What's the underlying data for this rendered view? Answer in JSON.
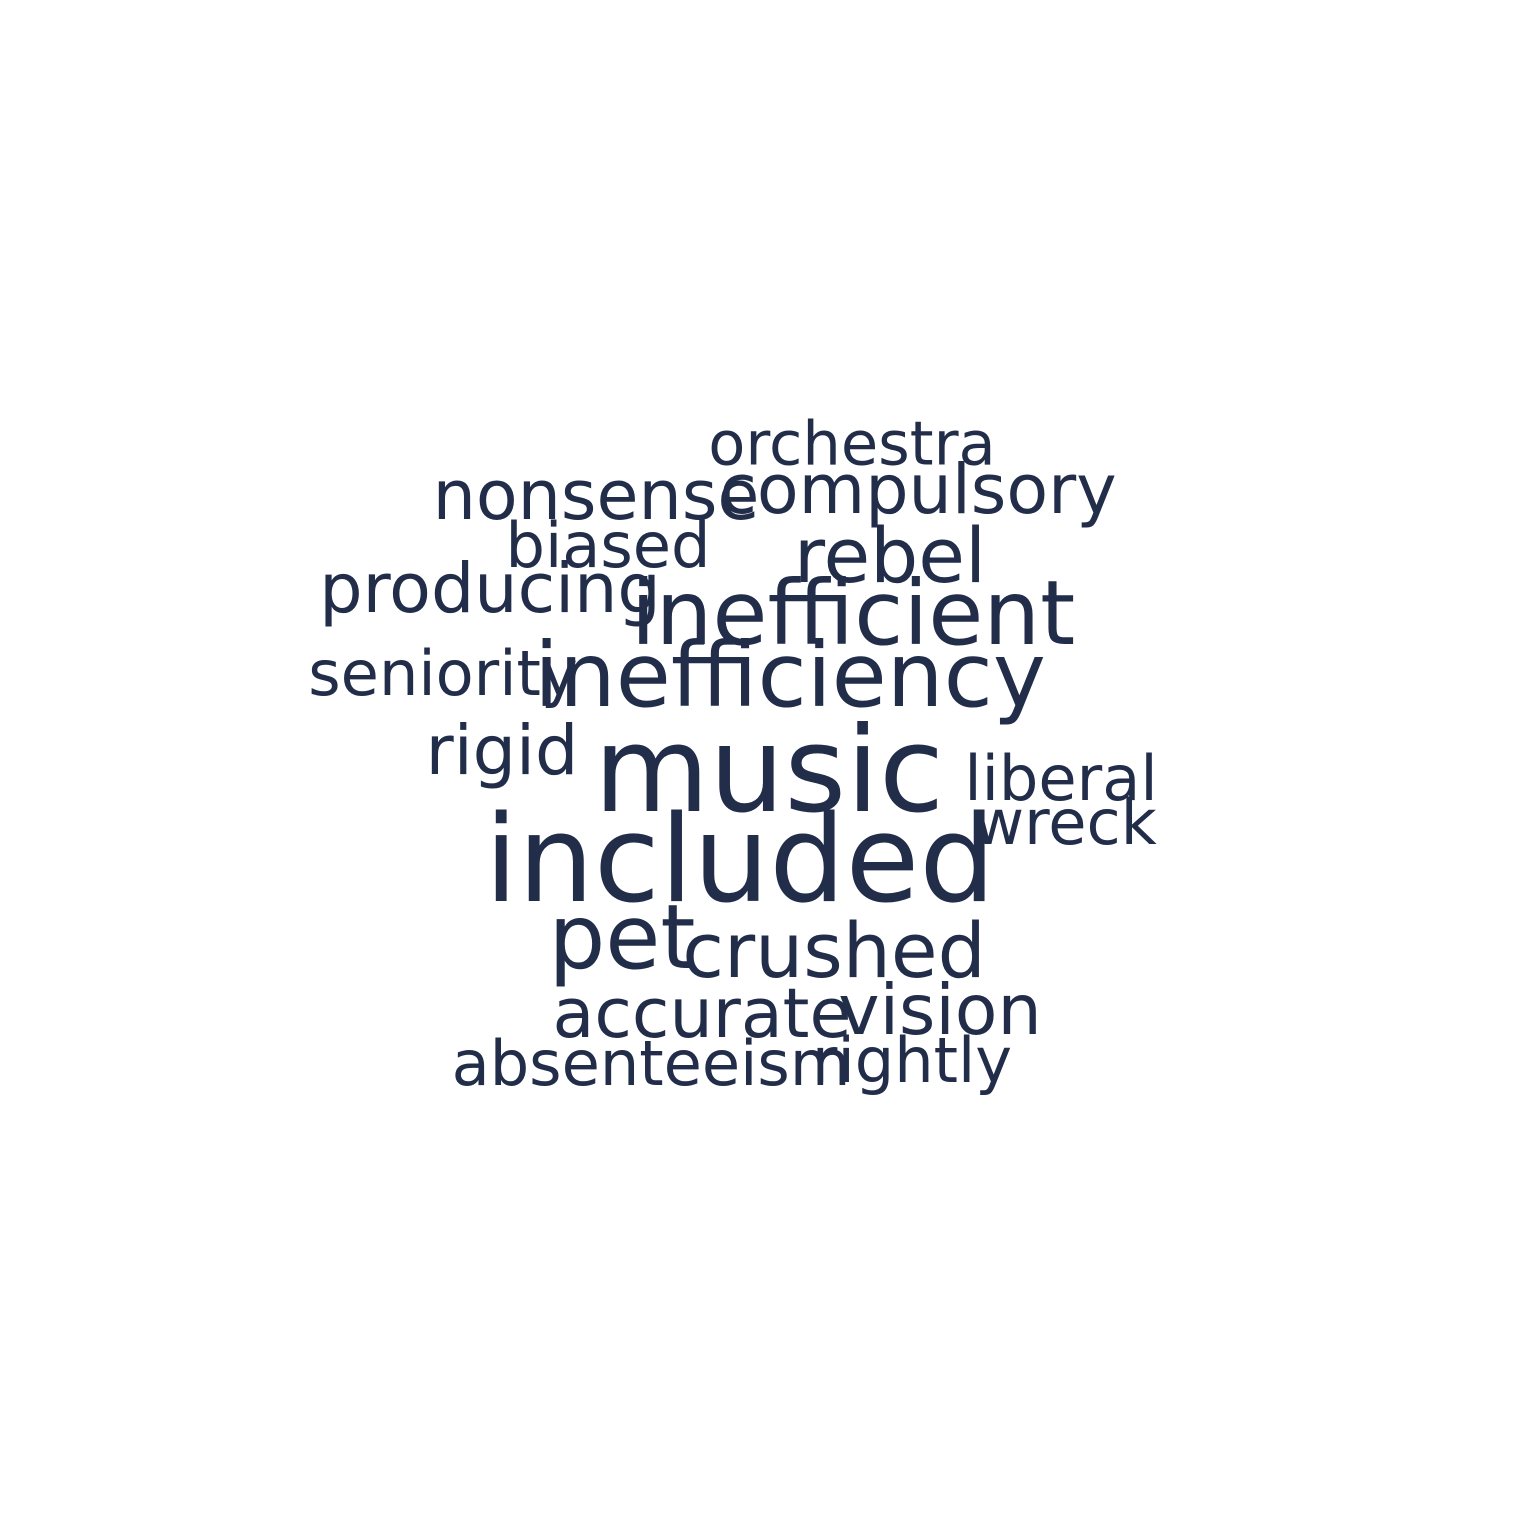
{
  "colors": {
    "background": "#ffffff",
    "word": "#222d4a"
  },
  "words": [
    {
      "text": "orchestra",
      "weight": 0.22
    },
    {
      "text": "compulsory",
      "weight": 0.32
    },
    {
      "text": "nonsense",
      "weight": 0.32
    },
    {
      "text": "biased",
      "weight": 0.24
    },
    {
      "text": "rebel",
      "weight": 0.42
    },
    {
      "text": "producing",
      "weight": 0.32
    },
    {
      "text": "inefficient",
      "weight": 0.6
    },
    {
      "text": "seniority",
      "weight": 0.24
    },
    {
      "text": "inefficiency",
      "weight": 0.6
    },
    {
      "text": "rigid",
      "weight": 0.32
    },
    {
      "text": "music",
      "weight": 0.98
    },
    {
      "text": "liberal",
      "weight": 0.24
    },
    {
      "text": "wreck",
      "weight": 0.24
    },
    {
      "text": "included",
      "weight": 1.0
    },
    {
      "text": "pet",
      "weight": 0.6
    },
    {
      "text": "crushed",
      "weight": 0.42
    },
    {
      "text": "accurate",
      "weight": 0.32
    },
    {
      "text": "vision",
      "weight": 0.34
    },
    {
      "text": "absenteeism",
      "weight": 0.24
    },
    {
      "text": "rightly",
      "weight": 0.24
    }
  ]
}
